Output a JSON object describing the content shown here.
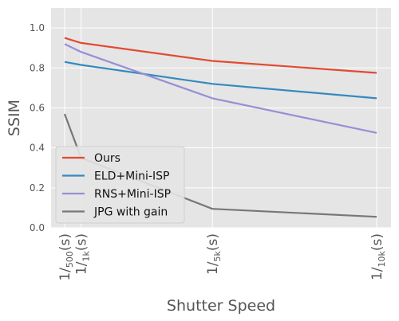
{
  "chart_data": {
    "type": "line",
    "xlabel": "Shutter Speed",
    "ylabel": "SSIM",
    "ylim": [
      0,
      1.1
    ],
    "y_ticks": [
      0.0,
      0.2,
      0.4,
      0.6,
      0.8,
      1.0
    ],
    "y_tick_labels": [
      "0.0",
      "0.2",
      "0.4",
      "0.6",
      "0.8",
      "1.0"
    ],
    "x": [
      500,
      1000,
      5000,
      10000
    ],
    "x_tick_labels": [
      {
        "main": "1/",
        "sub": "500",
        "tail": "(s)"
      },
      {
        "main": "1/",
        "sub": "1k",
        "tail": "(s)"
      },
      {
        "main": "1/",
        "sub": "5k",
        "tail": "(s)"
      },
      {
        "main": "1/",
        "sub": "10k",
        "tail": "(s)"
      }
    ],
    "grid": true,
    "legend_position": "lower-left",
    "series": [
      {
        "name": "Ours",
        "color": "#e24a33",
        "values": [
          0.95,
          0.925,
          0.835,
          0.775
        ]
      },
      {
        "name": "ELD+Mini-ISP",
        "color": "#348abd",
        "values": [
          0.83,
          0.815,
          0.72,
          0.648
        ]
      },
      {
        "name": "RNS+Mini-ISP",
        "color": "#988ed5",
        "values": [
          0.92,
          0.88,
          0.648,
          0.475
        ]
      },
      {
        "name": "JPG with gain",
        "color": "#777777",
        "values": [
          0.57,
          0.35,
          0.095,
          0.055
        ]
      }
    ]
  }
}
